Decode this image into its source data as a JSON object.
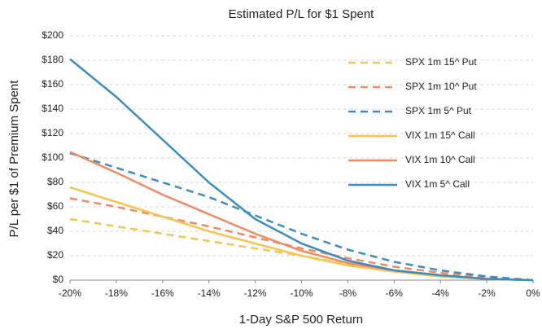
{
  "chart_data": {
    "type": "line",
    "title": "Estimated P/L for $1 Spent",
    "x_label": "1-Day S&P 500 Return",
    "y_label": "P/L per $1 of Premium Spent",
    "x": [
      -20,
      -18,
      -16,
      -14,
      -12,
      -10,
      -8,
      -6,
      -4,
      -2,
      0
    ],
    "series": [
      {
        "name": "SPX 1m 15^ Put",
        "color": "#f5c451",
        "dash": true,
        "values": [
          50,
          44,
          38,
          32,
          26,
          20,
          13,
          8,
          4,
          1,
          0
        ]
      },
      {
        "name": "SPX 1m 10^ Put",
        "color": "#f08a60",
        "dash": true,
        "values": [
          67,
          60,
          52,
          44,
          35,
          26,
          18,
          11,
          6,
          2,
          0
        ]
      },
      {
        "name": "SPX 1m 5^ Put",
        "color": "#3a8cc1",
        "dash": true,
        "values": [
          104,
          92,
          80,
          68,
          53,
          38,
          25,
          15,
          8,
          3,
          0
        ]
      },
      {
        "name": "VIX 1m 15^ Call",
        "color": "#f5c451",
        "dash": false,
        "values": [
          76,
          64,
          52,
          40,
          30,
          20,
          12,
          7,
          3,
          1,
          0
        ]
      },
      {
        "name": "VIX 1m 10^ Call",
        "color": "#f08a60",
        "dash": false,
        "values": [
          105,
          88,
          70,
          54,
          38,
          24,
          14,
          8,
          4,
          1,
          0
        ]
      },
      {
        "name": "VIX 1m 5^ Call",
        "color": "#3a8cc1",
        "dash": false,
        "values": [
          181,
          150,
          115,
          80,
          50,
          30,
          16,
          8,
          4,
          1,
          0
        ]
      }
    ],
    "xlim": [
      -20,
      0
    ],
    "xticks": [
      {
        "value": -20,
        "label": "-20%"
      },
      {
        "value": -18,
        "label": "-18%"
      },
      {
        "value": -16,
        "label": "-16%"
      },
      {
        "value": -14,
        "label": "-14%"
      },
      {
        "value": -12,
        "label": "-12%"
      },
      {
        "value": -10,
        "label": "-10%"
      },
      {
        "value": -8,
        "label": "-8%"
      },
      {
        "value": -6,
        "label": "-6%"
      },
      {
        "value": -4,
        "label": "-4%"
      },
      {
        "value": -2,
        "label": "-2%"
      },
      {
        "value": 0,
        "label": "0%"
      }
    ],
    "ylim": [
      0,
      200
    ],
    "yticks": [
      {
        "value": 0,
        "label": "$0"
      },
      {
        "value": 20,
        "label": "$20"
      },
      {
        "value": 40,
        "label": "$40"
      },
      {
        "value": 60,
        "label": "$60"
      },
      {
        "value": 80,
        "label": "$80"
      },
      {
        "value": 100,
        "label": "$100"
      },
      {
        "value": 120,
        "label": "$120"
      },
      {
        "value": 140,
        "label": "$140"
      },
      {
        "value": 160,
        "label": "$160"
      },
      {
        "value": 180,
        "label": "$180"
      },
      {
        "value": 200,
        "label": "$200"
      }
    ],
    "grid": true,
    "legend": "right"
  }
}
